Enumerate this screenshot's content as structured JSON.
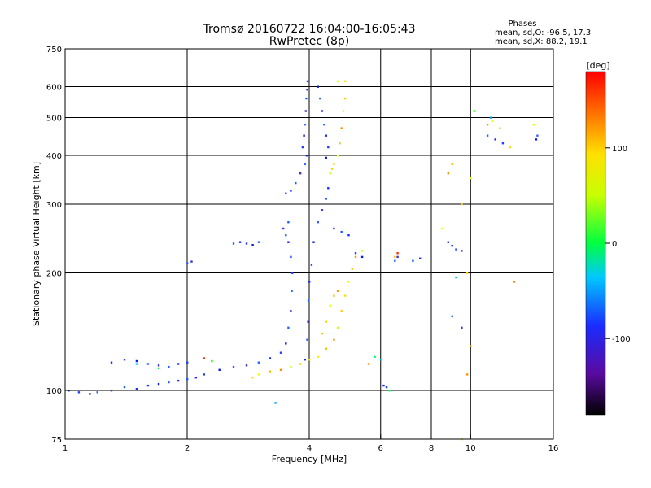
{
  "chart_data": {
    "type": "scatter",
    "title": "Tromsø 20160722 16:04:00-16:05:43",
    "subtitle": "RwPretec (8p)",
    "xlabel": "Frequency [MHz]",
    "ylabel": "Stationary phase Virtual Height [km]",
    "x_scale": "log",
    "y_scale": "log",
    "xlim": [
      1,
      16
    ],
    "ylim": [
      75,
      750
    ],
    "x_ticks": [
      1,
      2,
      4,
      6,
      8,
      10,
      16
    ],
    "y_ticks": [
      75,
      100,
      200,
      300,
      400,
      500,
      600,
      750
    ],
    "x_gridlines": [
      2,
      4,
      6,
      8,
      10
    ],
    "y_gridlines": [
      100,
      200,
      300,
      400,
      500,
      600
    ],
    "grid": true,
    "stats": {
      "heading": "Phases",
      "line1": "mean, sd,O: -96.5, 17.3",
      "line2": "mean, sd,X: 88.2, 19.1"
    },
    "colorbar": {
      "label": "[deg]",
      "range": [
        -180,
        180
      ],
      "ticks": [
        "100",
        "0",
        "-100"
      ],
      "tick_values": [
        100,
        0,
        -100
      ]
    },
    "series": [
      {
        "mode": "O",
        "color_hint": "blue (~ -100 deg)",
        "points": [
          [
            1.02,
            100
          ],
          [
            1.08,
            99
          ],
          [
            1.15,
            98
          ],
          [
            1.2,
            99
          ],
          [
            1.3,
            100
          ],
          [
            1.4,
            102
          ],
          [
            1.5,
            101
          ],
          [
            1.6,
            103
          ],
          [
            1.7,
            104
          ],
          [
            1.8,
            105
          ],
          [
            1.9,
            106
          ],
          [
            2.0,
            107
          ],
          [
            2.1,
            108
          ],
          [
            2.2,
            110
          ],
          [
            2.4,
            113
          ],
          [
            2.6,
            115
          ],
          [
            2.8,
            116
          ],
          [
            3.0,
            118
          ],
          [
            3.2,
            121
          ],
          [
            3.4,
            125
          ],
          [
            3.5,
            132
          ],
          [
            3.55,
            145
          ],
          [
            3.6,
            160
          ],
          [
            3.62,
            180
          ],
          [
            3.63,
            200
          ],
          [
            3.6,
            220
          ],
          [
            3.55,
            240
          ],
          [
            3.5,
            250
          ],
          [
            3.45,
            260
          ],
          [
            3.55,
            270
          ],
          [
            1.3,
            118
          ],
          [
            1.4,
            120
          ],
          [
            1.5,
            119
          ],
          [
            1.6,
            117
          ],
          [
            1.7,
            116
          ],
          [
            1.8,
            115
          ],
          [
            1.9,
            117
          ],
          [
            2.0,
            118
          ],
          [
            3.9,
            120
          ],
          [
            3.95,
            135
          ],
          [
            3.97,
            150
          ],
          [
            3.98,
            170
          ],
          [
            4.0,
            190
          ],
          [
            4.05,
            210
          ],
          [
            4.1,
            240
          ],
          [
            4.2,
            270
          ],
          [
            4.3,
            290
          ],
          [
            4.4,
            310
          ],
          [
            4.45,
            330
          ],
          [
            3.85,
            420
          ],
          [
            3.88,
            450
          ],
          [
            3.9,
            480
          ],
          [
            3.92,
            520
          ],
          [
            3.93,
            560
          ],
          [
            3.95,
            590
          ],
          [
            3.96,
            620
          ],
          [
            3.94,
            400
          ],
          [
            3.9,
            380
          ],
          [
            3.8,
            360
          ],
          [
            3.7,
            340
          ],
          [
            3.6,
            325
          ],
          [
            3.5,
            320
          ],
          [
            4.2,
            600
          ],
          [
            4.25,
            560
          ],
          [
            4.3,
            520
          ],
          [
            4.35,
            480
          ],
          [
            4.4,
            450
          ],
          [
            4.45,
            420
          ],
          [
            4.4,
            395
          ],
          [
            2.0,
            212
          ],
          [
            2.05,
            214
          ],
          [
            2.6,
            238
          ],
          [
            2.7,
            240
          ],
          [
            2.8,
            238
          ],
          [
            2.9,
            236
          ],
          [
            3.0,
            240
          ],
          [
            4.6,
            260
          ],
          [
            4.8,
            255
          ],
          [
            5.0,
            250
          ],
          [
            5.2,
            225
          ],
          [
            5.4,
            220
          ],
          [
            6.5,
            215
          ],
          [
            6.6,
            220
          ],
          [
            7.2,
            215
          ],
          [
            7.5,
            218
          ],
          [
            8.8,
            240
          ],
          [
            9.0,
            235
          ],
          [
            9.2,
            230
          ],
          [
            9.5,
            228
          ],
          [
            11.0,
            450
          ],
          [
            11.5,
            440
          ],
          [
            12.0,
            430
          ],
          [
            14.5,
            440
          ],
          [
            14.6,
            450
          ],
          [
            9.5,
            145
          ],
          [
            9.0,
            155
          ],
          [
            6.1,
            103
          ],
          [
            6.2,
            102
          ]
        ]
      },
      {
        "mode": "X",
        "color_hint": "yellow-orange (~ +90 deg)",
        "points": [
          [
            2.9,
            108
          ],
          [
            3.0,
            110
          ],
          [
            3.2,
            112
          ],
          [
            3.4,
            113
          ],
          [
            3.6,
            115
          ],
          [
            3.8,
            117
          ],
          [
            4.0,
            120
          ],
          [
            4.2,
            122
          ],
          [
            4.4,
            128
          ],
          [
            4.6,
            135
          ],
          [
            4.7,
            145
          ],
          [
            4.8,
            160
          ],
          [
            4.9,
            175
          ],
          [
            5.0,
            190
          ],
          [
            5.1,
            205
          ],
          [
            5.2,
            220
          ],
          [
            5.4,
            228
          ],
          [
            4.3,
            140
          ],
          [
            4.4,
            150
          ],
          [
            4.5,
            165
          ],
          [
            4.6,
            175
          ],
          [
            4.7,
            180
          ],
          [
            4.5,
            360
          ],
          [
            4.55,
            370
          ],
          [
            4.6,
            380
          ],
          [
            4.7,
            400
          ],
          [
            4.75,
            430
          ],
          [
            4.8,
            470
          ],
          [
            4.85,
            520
          ],
          [
            4.9,
            560
          ],
          [
            4.9,
            620
          ],
          [
            4.7,
            620
          ],
          [
            9.0,
            380
          ],
          [
            8.8,
            360
          ],
          [
            10.0,
            350
          ],
          [
            9.8,
            200
          ],
          [
            9.5,
            300
          ],
          [
            8.5,
            260
          ],
          [
            6.5,
            220
          ],
          [
            11.0,
            480
          ],
          [
            11.3,
            490
          ],
          [
            11.8,
            470
          ],
          [
            12.5,
            420
          ],
          [
            14.3,
            480
          ],
          [
            10.0,
            130
          ],
          [
            9.8,
            110
          ],
          [
            9.5,
            75
          ]
        ]
      },
      {
        "mode": "scattered",
        "color_hint": "cyan / green / red mix",
        "points": [
          [
            1.5,
            117
          ],
          [
            1.7,
            114
          ],
          [
            2.2,
            121
          ],
          [
            2.3,
            119
          ],
          [
            3.3,
            93
          ],
          [
            5.6,
            117
          ],
          [
            6.0,
            120
          ],
          [
            6.3,
            100
          ],
          [
            6.6,
            225
          ],
          [
            10.2,
            520
          ],
          [
            11.2,
            500
          ],
          [
            12.8,
            190
          ],
          [
            9.2,
            195
          ],
          [
            5.8,
            122
          ]
        ]
      }
    ]
  }
}
